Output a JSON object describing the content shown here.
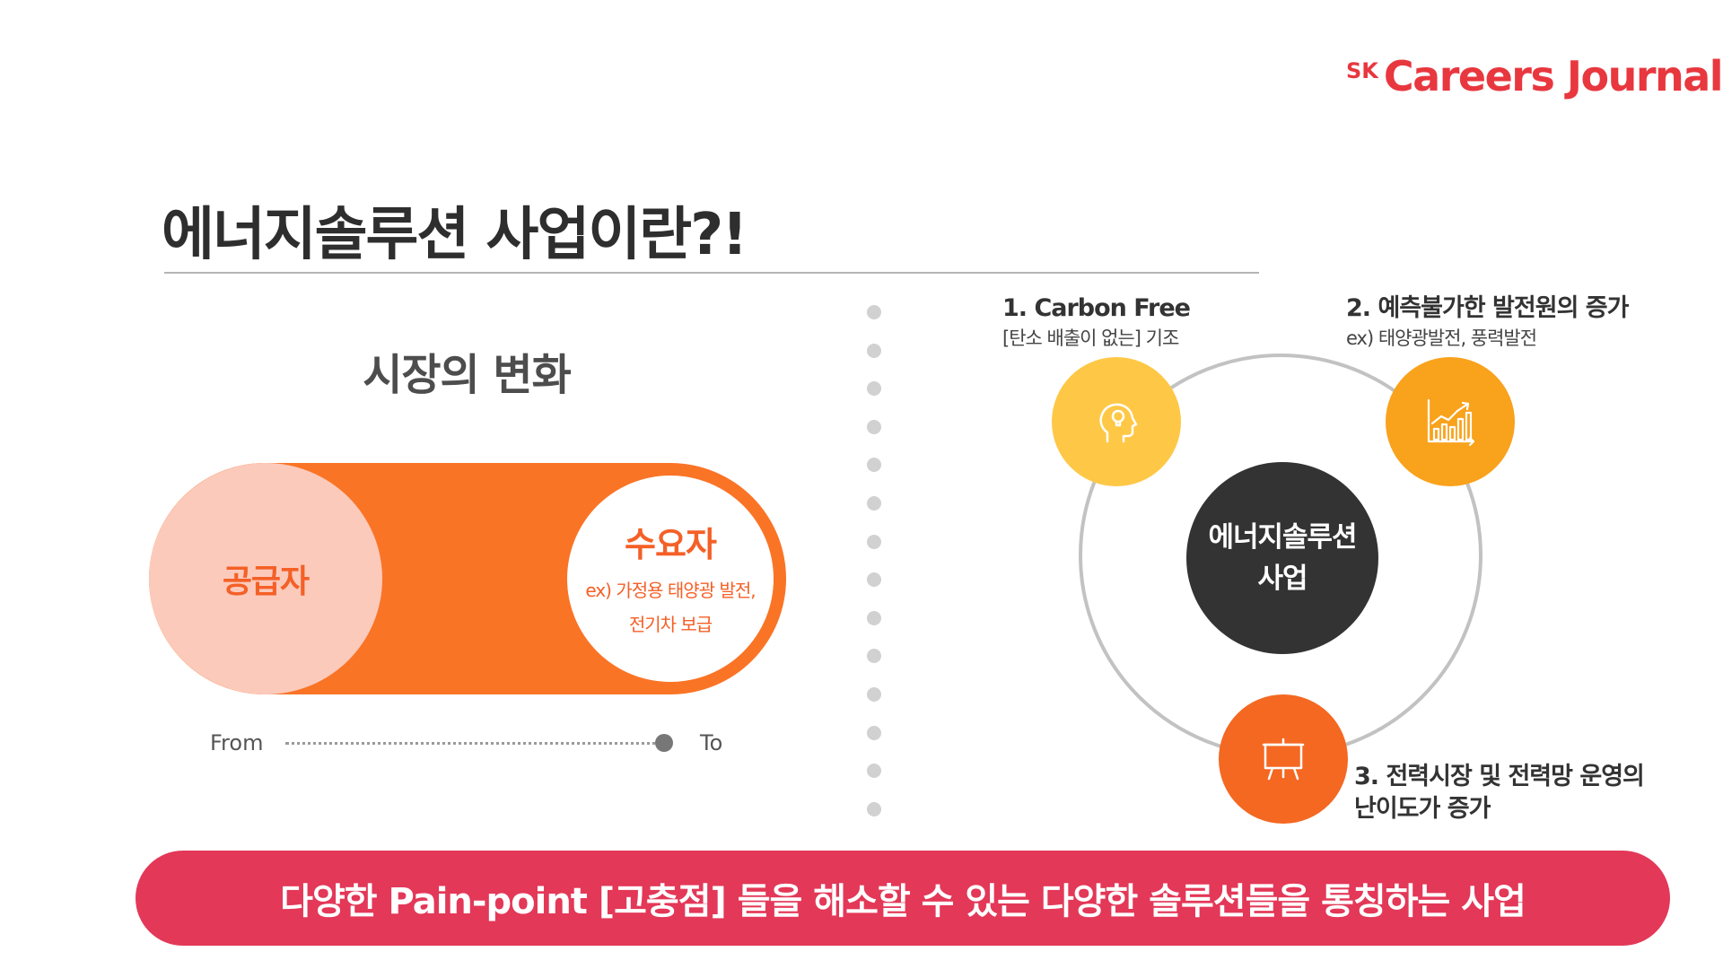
{
  "brand": {
    "prefix": "SK",
    "name": "Careers Journal",
    "color": "#e8373e"
  },
  "slide": {
    "title": "에너지솔루션 사업이란?!"
  },
  "market": {
    "heading": "시장의 변화",
    "supplier": "공급자",
    "consumer": {
      "label": "수요자",
      "example_line1": "ex) 가정용 태양광 발전,",
      "example_line2": "전기차 보급"
    },
    "from_label": "From",
    "to_label": "To"
  },
  "diagram": {
    "center": {
      "line1": "에너지솔루션",
      "line2": "사업"
    },
    "items": [
      {
        "title": "1. Carbon Free",
        "subtitle": "[탄소 배출이 없는] 기조",
        "icon": "head-lightbulb-icon",
        "color": "#fec846"
      },
      {
        "title": "2. 예측불가한 발전원의 증가",
        "subtitle": "ex) 태양광발전, 풍력발전",
        "icon": "growth-chart-icon",
        "color": "#f9a21c"
      },
      {
        "title_line1": "3. 전력시장 및 전력망 운영의",
        "title_line2": "난이도가 증가",
        "icon": "presentation-board-icon",
        "color": "#f46822"
      }
    ]
  },
  "banner": {
    "text": "다양한 Pain-point [고충점] 들을 해소할 수 있는 다양한 솔루션들을 통칭하는 사업",
    "color": "#e33858"
  }
}
